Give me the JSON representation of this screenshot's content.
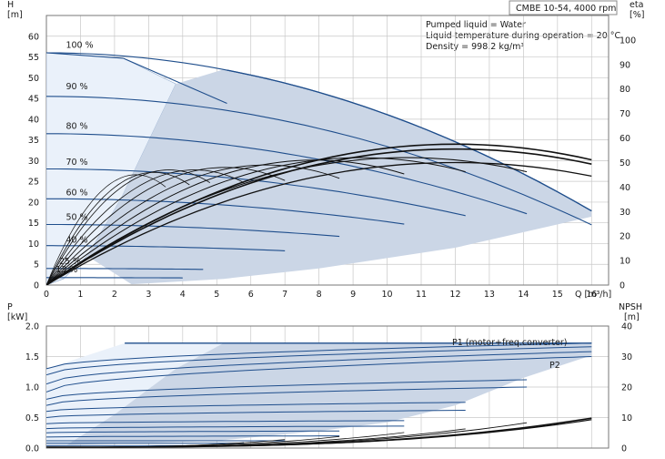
{
  "chart_data": [
    {
      "type": "line",
      "title": "CMBE 10-54, 4000 rpm",
      "info": [
        "Pumped liquid = Water",
        "Liquid temperature during operation = 20 °C",
        "Density = 998.2 kg/m³"
      ],
      "y_left_label": [
        "H",
        "[m]"
      ],
      "y_right_label": [
        "eta",
        "[%]"
      ],
      "xlabel": "Q [m³/h]",
      "xlim": [
        0,
        16.5
      ],
      "ylim": [
        0,
        65
      ],
      "eta_lim": [
        0,
        110
      ],
      "xticks": [
        "0",
        "1",
        "2",
        "3",
        "4",
        "5",
        "6",
        "7",
        "8",
        "9",
        "10",
        "11",
        "12",
        "13",
        "14",
        "15",
        "16"
      ],
      "yticks": [
        "0",
        "5",
        "10",
        "15",
        "20",
        "25",
        "30",
        "35",
        "40",
        "45",
        "50",
        "55",
        "60"
      ],
      "eta_ticks": [
        "0",
        "10",
        "20",
        "30",
        "40",
        "50",
        "60",
        "70",
        "80",
        "90",
        "100"
      ],
      "grid": true,
      "speed_labels": [
        "100 %",
        "90 %",
        "80 %",
        "70 %",
        "60 %",
        "50 %",
        "40 %",
        "25 %",
        "13 %"
      ],
      "speed_curves": [
        {
          "name": "100 %",
          "fraction": 1.0,
          "h0": 56.0,
          "qmax": 16.0
        },
        {
          "name": "90 %",
          "fraction": 0.9,
          "h0": 45.5,
          "qmax": 16.0
        },
        {
          "name": "80 %",
          "fraction": 0.8,
          "h0": 36.5,
          "qmax": 14.1
        },
        {
          "name": "70 %",
          "fraction": 0.7,
          "h0": 28.0,
          "qmax": 12.3
        },
        {
          "name": "60 %",
          "fraction": 0.6,
          "h0": 20.8,
          "qmax": 10.5
        },
        {
          "name": "50 %",
          "fraction": 0.5,
          "h0": 14.6,
          "qmax": 8.6
        },
        {
          "name": "40 %",
          "fraction": 0.4,
          "h0": 9.5,
          "qmax": 7.0
        },
        {
          "name": "25 %",
          "fraction": 0.25,
          "h0": 4.0,
          "qmax": 4.6
        },
        {
          "name": "13 %",
          "fraction": 0.13,
          "h0": 1.8,
          "qmax": 4.0
        }
      ]
    },
    {
      "type": "line",
      "y_left_label": [
        "P",
        "[kW]"
      ],
      "y_right_label": [
        "NPSH",
        "[m]"
      ],
      "xlim": [
        0,
        16.5
      ],
      "ylim": [
        0,
        2.0
      ],
      "npsh_lim": [
        0,
        40
      ],
      "yticks": [
        "0.0",
        "0.5",
        "1.0",
        "1.5",
        "2.0"
      ],
      "npsh_ticks": [
        "0",
        "10",
        "20",
        "30",
        "40"
      ],
      "grid": true,
      "series": [
        {
          "name": "P1 (motor+freq.converter)",
          "values": [
            1.2,
            1.72
          ]
        },
        {
          "name": "P2",
          "values": [
            1.05,
            1.55
          ]
        }
      ]
    }
  ]
}
